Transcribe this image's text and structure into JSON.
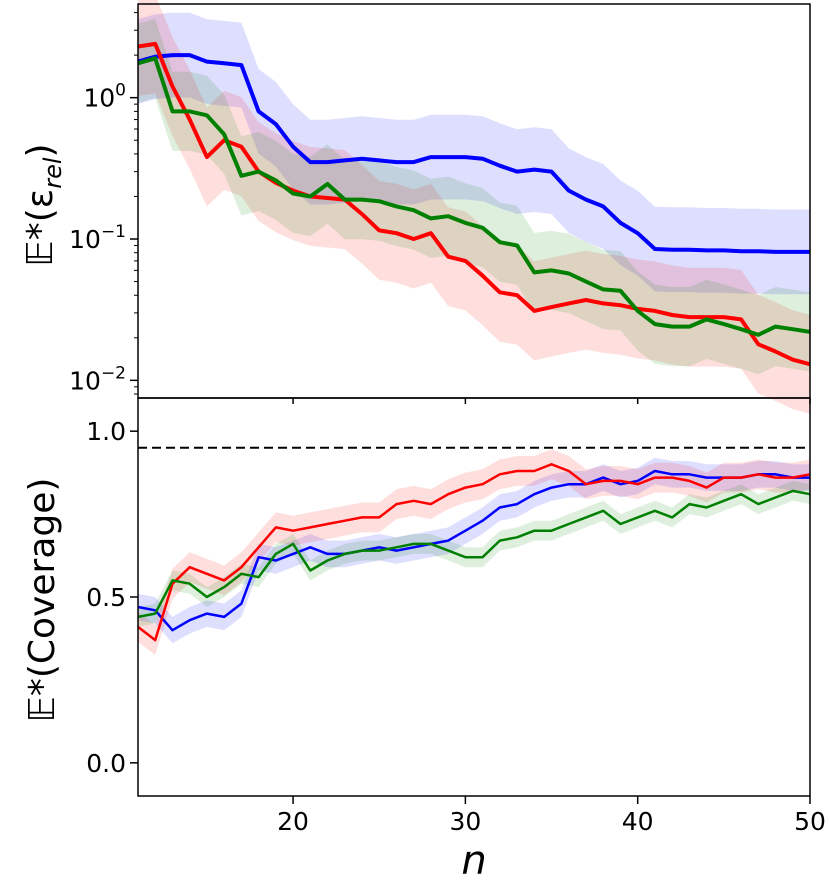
{
  "chart_data": [
    {
      "type": "line",
      "panel": "top",
      "ylabel": "𝔼*(ε",
      "ylabel_sub": "rel",
      "ylabel_close": ")",
      "yscale": "log",
      "xlim": [
        11,
        50
      ],
      "ylim": [
        0.0075,
        4.6
      ],
      "y_ticks": [
        {
          "value": 1,
          "base": "10",
          "exp": "0"
        },
        {
          "value": 0.1,
          "base": "10",
          "exp": "−1"
        },
        {
          "value": 0.01,
          "base": "10",
          "exp": "−2"
        }
      ],
      "grid": false,
      "legend": "none",
      "x": [
        11,
        12,
        13,
        14,
        15,
        16,
        17,
        18,
        19,
        20,
        21,
        22,
        23,
        24,
        25,
        26,
        27,
        28,
        29,
        30,
        31,
        32,
        33,
        34,
        35,
        36,
        37,
        38,
        39,
        40,
        41,
        42,
        43,
        44,
        45,
        46,
        47,
        48,
        49,
        50
      ],
      "series": [
        {
          "color": "#0000ff",
          "values": [
            1.8,
            1.95,
            2.0,
            2.0,
            1.8,
            1.75,
            1.7,
            0.8,
            0.65,
            0.45,
            0.35,
            0.35,
            0.36,
            0.37,
            0.36,
            0.35,
            0.35,
            0.38,
            0.38,
            0.38,
            0.37,
            0.33,
            0.3,
            0.31,
            0.3,
            0.22,
            0.19,
            0.17,
            0.13,
            0.11,
            0.085,
            0.084,
            0.084,
            0.083,
            0.083,
            0.082,
            0.082,
            0.081,
            0.081,
            0.081
          ],
          "band": 0.3
        },
        {
          "color": "#ff0000",
          "values": [
            2.3,
            2.4,
            1.2,
            0.7,
            0.38,
            0.5,
            0.45,
            0.3,
            0.25,
            0.22,
            0.2,
            0.195,
            0.19,
            0.15,
            0.115,
            0.11,
            0.1,
            0.11,
            0.075,
            0.07,
            0.055,
            0.042,
            0.04,
            0.031,
            0.033,
            0.035,
            0.037,
            0.035,
            0.034,
            0.032,
            0.031,
            0.029,
            0.028,
            0.028,
            0.028,
            0.027,
            0.018,
            0.016,
            0.014,
            0.013
          ],
          "band": 0.35
        },
        {
          "color": "#008000",
          "values": [
            1.75,
            1.9,
            0.8,
            0.8,
            0.75,
            0.55,
            0.28,
            0.3,
            0.26,
            0.21,
            0.2,
            0.245,
            0.19,
            0.19,
            0.185,
            0.17,
            0.16,
            0.14,
            0.145,
            0.13,
            0.12,
            0.095,
            0.09,
            0.058,
            0.06,
            0.057,
            0.05,
            0.044,
            0.043,
            0.031,
            0.025,
            0.024,
            0.024,
            0.027,
            0.025,
            0.023,
            0.021,
            0.024,
            0.023,
            0.022
          ],
          "band": 0.28
        }
      ]
    },
    {
      "type": "line",
      "panel": "bottom",
      "ylabel": "𝔼*(Coverage)",
      "xlabel": "n",
      "xlim": [
        11,
        50
      ],
      "ylim": [
        -0.1,
        1.1
      ],
      "y_ticks": [
        {
          "value": 0,
          "label": "0.0"
        },
        {
          "value": 0.5,
          "label": "0.5"
        },
        {
          "value": 1,
          "label": "1.0"
        }
      ],
      "x_ticks": [
        {
          "value": 20,
          "label": "20"
        },
        {
          "value": 30,
          "label": "30"
        },
        {
          "value": 40,
          "label": "40"
        },
        {
          "value": 50,
          "label": "50"
        }
      ],
      "reference_line": {
        "value": 0.95,
        "style": "dashed",
        "color": "#000000"
      },
      "grid": false,
      "legend": "none",
      "x": [
        11,
        12,
        13,
        14,
        15,
        16,
        17,
        18,
        19,
        20,
        21,
        22,
        23,
        24,
        25,
        26,
        27,
        28,
        29,
        30,
        31,
        32,
        33,
        34,
        35,
        36,
        37,
        38,
        39,
        40,
        41,
        42,
        43,
        44,
        45,
        46,
        47,
        48,
        49,
        50
      ],
      "series": [
        {
          "color": "#0000ff",
          "values": [
            0.47,
            0.46,
            0.4,
            0.43,
            0.45,
            0.44,
            0.48,
            0.62,
            0.61,
            0.63,
            0.65,
            0.63,
            0.63,
            0.64,
            0.65,
            0.64,
            0.65,
            0.66,
            0.67,
            0.7,
            0.73,
            0.77,
            0.78,
            0.81,
            0.83,
            0.84,
            0.84,
            0.86,
            0.84,
            0.85,
            0.88,
            0.87,
            0.87,
            0.86,
            0.86,
            0.86,
            0.87,
            0.87,
            0.86,
            0.86
          ],
          "band": 0.04
        },
        {
          "color": "#ff0000",
          "values": [
            0.41,
            0.37,
            0.54,
            0.59,
            0.57,
            0.55,
            0.59,
            0.65,
            0.71,
            0.7,
            0.71,
            0.72,
            0.73,
            0.74,
            0.74,
            0.78,
            0.79,
            0.78,
            0.81,
            0.83,
            0.84,
            0.87,
            0.88,
            0.88,
            0.9,
            0.88,
            0.84,
            0.85,
            0.85,
            0.84,
            0.86,
            0.86,
            0.85,
            0.83,
            0.86,
            0.86,
            0.87,
            0.86,
            0.86,
            0.87
          ],
          "band": 0.045
        },
        {
          "color": "#008000",
          "values": [
            0.44,
            0.45,
            0.55,
            0.54,
            0.5,
            0.53,
            0.57,
            0.56,
            0.63,
            0.66,
            0.58,
            0.61,
            0.63,
            0.64,
            0.64,
            0.65,
            0.66,
            0.66,
            0.64,
            0.62,
            0.62,
            0.67,
            0.68,
            0.7,
            0.7,
            0.72,
            0.74,
            0.76,
            0.72,
            0.74,
            0.76,
            0.74,
            0.78,
            0.77,
            0.79,
            0.81,
            0.78,
            0.8,
            0.82,
            0.81
          ],
          "band": 0.03
        }
      ]
    }
  ]
}
